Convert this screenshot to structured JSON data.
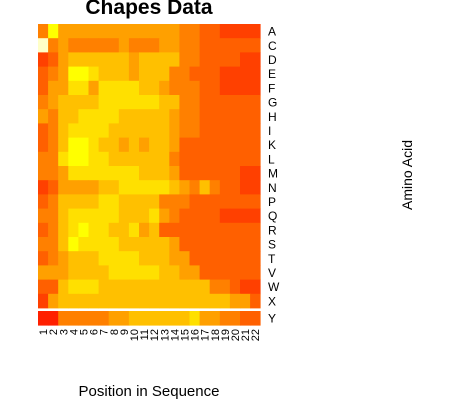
{
  "chart_data": {
    "type": "heatmap",
    "title": "Chapes Data",
    "xlabel": "Position in Sequence",
    "ylabel": "Amino Acid",
    "x_categories": [
      "1",
      "2",
      "3",
      "4",
      "5",
      "6",
      "7",
      "8",
      "9",
      "10",
      "11",
      "12",
      "13",
      "14",
      "15",
      "16",
      "17",
      "18",
      "19",
      "20",
      "21",
      "22"
    ],
    "y_categories": [
      "A",
      "C",
      "D",
      "E",
      "F",
      "G",
      "H",
      "I",
      "K",
      "L",
      "M",
      "N",
      "P",
      "Q",
      "R",
      "S",
      "T",
      "V",
      "W",
      "X",
      "Y"
    ],
    "palette": [
      "#FF0000",
      "#FF2000",
      "#FF4000",
      "#FF6000",
      "#FF8000",
      "#FFA000",
      "#FFC000",
      "#FFE000",
      "#FFFF00",
      "#FFFF80",
      "#FFFFC8"
    ],
    "values": [
      [
        4,
        8,
        5,
        5,
        5,
        5,
        5,
        5,
        5,
        5,
        5,
        5,
        5,
        5,
        4,
        4,
        3,
        3,
        2,
        2,
        2,
        2
      ],
      [
        10,
        4,
        5,
        4,
        4,
        4,
        4,
        4,
        5,
        4,
        4,
        4,
        5,
        5,
        4,
        4,
        3,
        3,
        3,
        3,
        3,
        3
      ],
      [
        2,
        3,
        5,
        6,
        6,
        6,
        6,
        6,
        6,
        5,
        6,
        6,
        6,
        6,
        4,
        4,
        3,
        3,
        3,
        3,
        2,
        2
      ],
      [
        3,
        4,
        5,
        8,
        8,
        7,
        6,
        6,
        6,
        5,
        6,
        6,
        6,
        4,
        4,
        3,
        3,
        3,
        2,
        2,
        2,
        2
      ],
      [
        3,
        5,
        5,
        7,
        7,
        5,
        7,
        7,
        7,
        7,
        6,
        6,
        5,
        4,
        4,
        4,
        3,
        3,
        2,
        2,
        2,
        2
      ],
      [
        4,
        5,
        6,
        6,
        6,
        6,
        7,
        7,
        7,
        7,
        7,
        7,
        6,
        6,
        4,
        4,
        3,
        3,
        3,
        3,
        3,
        3
      ],
      [
        5,
        4,
        6,
        6,
        7,
        7,
        7,
        7,
        6,
        6,
        6,
        6,
        6,
        5,
        4,
        4,
        3,
        3,
        3,
        3,
        3,
        3
      ],
      [
        3,
        4,
        6,
        7,
        7,
        7,
        7,
        6,
        6,
        6,
        6,
        6,
        6,
        5,
        4,
        4,
        3,
        3,
        3,
        3,
        3,
        3
      ],
      [
        3,
        4,
        6,
        8,
        8,
        7,
        6,
        6,
        5,
        6,
        5,
        6,
        6,
        5,
        3,
        3,
        3,
        3,
        3,
        3,
        3,
        3
      ],
      [
        4,
        4,
        7,
        8,
        8,
        7,
        7,
        6,
        6,
        6,
        6,
        6,
        6,
        4,
        3,
        3,
        3,
        3,
        3,
        3,
        3,
        3
      ],
      [
        4,
        4,
        5,
        7,
        7,
        7,
        7,
        7,
        7,
        7,
        6,
        6,
        6,
        5,
        3,
        3,
        3,
        3,
        3,
        3,
        2,
        2
      ],
      [
        2,
        3,
        5,
        5,
        5,
        5,
        6,
        6,
        7,
        7,
        7,
        7,
        7,
        6,
        5,
        4,
        6,
        4,
        3,
        3,
        2,
        2
      ],
      [
        3,
        4,
        6,
        6,
        6,
        6,
        7,
        7,
        6,
        6,
        6,
        6,
        4,
        4,
        4,
        3,
        3,
        3,
        3,
        3,
        3,
        3
      ],
      [
        4,
        4,
        6,
        7,
        7,
        7,
        7,
        7,
        6,
        6,
        6,
        7,
        5,
        4,
        3,
        3,
        3,
        3,
        2,
        2,
        2,
        2
      ],
      [
        3,
        4,
        6,
        7,
        8,
        7,
        7,
        6,
        6,
        7,
        5,
        6,
        3,
        3,
        3,
        3,
        3,
        3,
        3,
        3,
        3,
        3
      ],
      [
        4,
        4,
        6,
        8,
        7,
        7,
        7,
        7,
        6,
        6,
        6,
        6,
        6,
        5,
        3,
        3,
        3,
        3,
        3,
        3,
        3,
        3
      ],
      [
        3,
        4,
        5,
        6,
        6,
        6,
        7,
        7,
        7,
        7,
        6,
        6,
        6,
        5,
        5,
        3,
        3,
        3,
        3,
        3,
        3,
        3
      ],
      [
        5,
        5,
        5,
        6,
        6,
        6,
        6,
        7,
        7,
        7,
        7,
        7,
        6,
        6,
        5,
        5,
        3,
        3,
        3,
        3,
        3,
        3
      ],
      [
        3,
        3,
        6,
        7,
        7,
        7,
        6,
        6,
        6,
        6,
        6,
        6,
        6,
        6,
        6,
        6,
        6,
        4,
        4,
        3,
        2,
        2
      ],
      [
        2,
        5,
        6,
        6,
        6,
        6,
        6,
        6,
        6,
        6,
        6,
        6,
        6,
        6,
        6,
        6,
        6,
        6,
        6,
        5,
        5,
        3
      ],
      [
        1,
        1,
        4,
        4,
        4,
        4,
        4,
        5,
        5,
        6,
        6,
        6,
        6,
        6,
        6,
        7,
        5,
        5,
        4,
        4,
        3,
        3
      ]
    ]
  }
}
